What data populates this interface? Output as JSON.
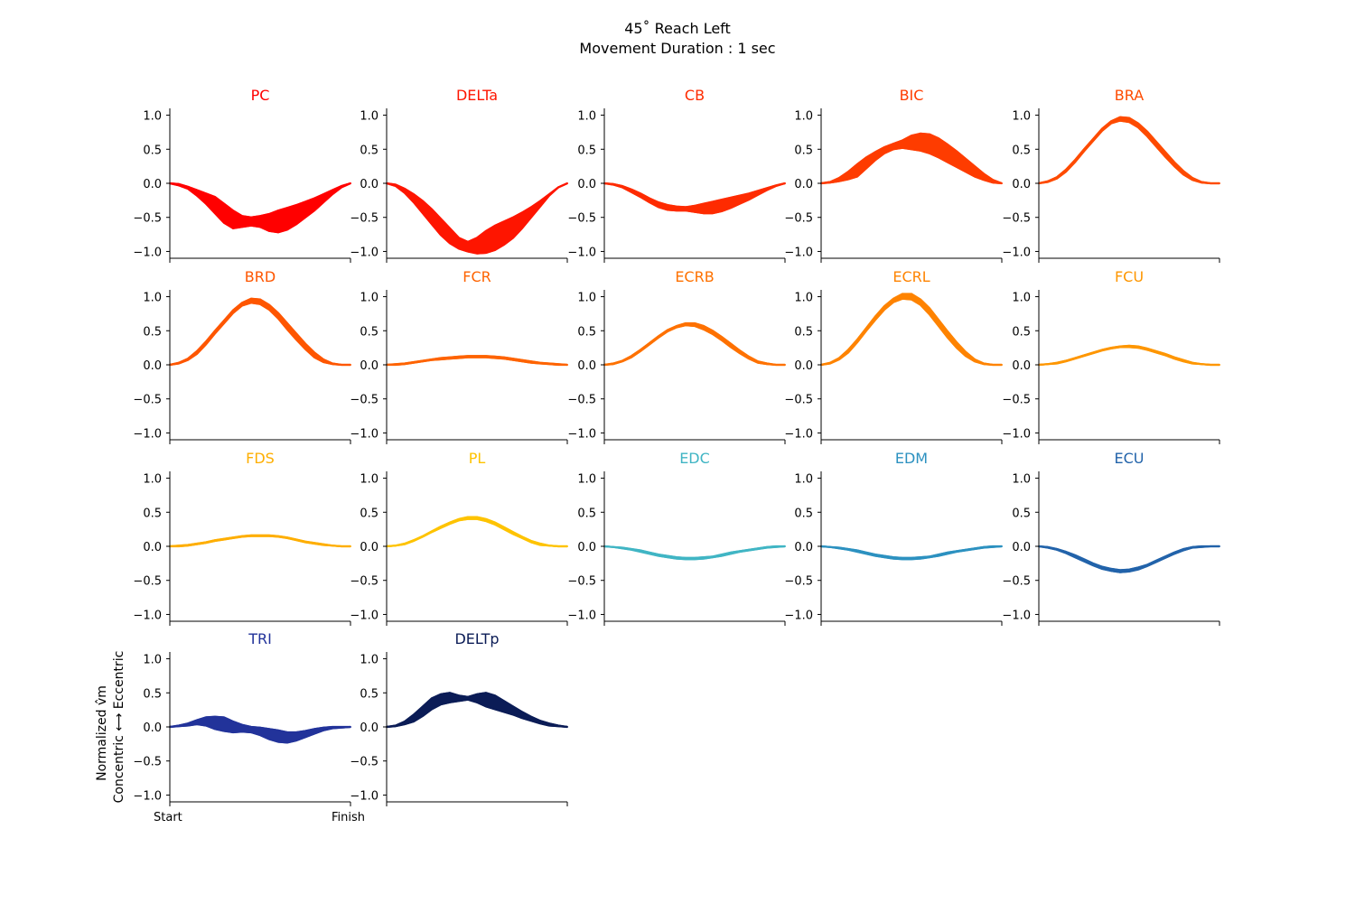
{
  "title": "45˚ Reach Left",
  "subtitle": "Movement Duration : 1 sec",
  "ylabel_line1": "Normalized v̂m",
  "ylabel_line2": "Concentric ⟷ Eccentric",
  "xtick_labels": [
    "Start",
    "Finish"
  ],
  "ytick_labels": [
    "1.0",
    "0.5",
    "0.0",
    "−0.5",
    "−1.0"
  ],
  "chart_data": {
    "type": "line",
    "layout": {
      "rows": 4,
      "cols": 5
    },
    "x": [
      0,
      0.05,
      0.1,
      0.15,
      0.2,
      0.25,
      0.3,
      0.35,
      0.4,
      0.45,
      0.5,
      0.55,
      0.6,
      0.65,
      0.7,
      0.75,
      0.8,
      0.85,
      0.9,
      0.95,
      1.0
    ],
    "xlim": [
      0,
      1
    ],
    "ylim": [
      -1.1,
      1.1
    ],
    "yticks": [
      1.0,
      0.5,
      0.0,
      -0.5,
      -1.0
    ],
    "muscles": [
      {
        "name": "PC",
        "color": "#ff0000",
        "upper": [
          0,
          -0.01,
          -0.05,
          -0.1,
          -0.15,
          -0.2,
          -0.3,
          -0.4,
          -0.48,
          -0.5,
          -0.48,
          -0.45,
          -0.4,
          -0.36,
          -0.32,
          -0.27,
          -0.22,
          -0.16,
          -0.1,
          -0.04,
          0
        ],
        "lower": [
          0,
          -0.03,
          -0.08,
          -0.18,
          -0.3,
          -0.44,
          -0.58,
          -0.66,
          -0.64,
          -0.62,
          -0.64,
          -0.7,
          -0.72,
          -0.68,
          -0.6,
          -0.5,
          -0.4,
          -0.28,
          -0.16,
          -0.06,
          0
        ]
      },
      {
        "name": "DELTa",
        "color": "#fe1500",
        "upper": [
          0,
          -0.02,
          -0.08,
          -0.16,
          -0.26,
          -0.38,
          -0.52,
          -0.66,
          -0.8,
          -0.86,
          -0.8,
          -0.7,
          -0.62,
          -0.56,
          -0.5,
          -0.43,
          -0.35,
          -0.26,
          -0.16,
          -0.06,
          0
        ],
        "lower": [
          0,
          -0.04,
          -0.14,
          -0.28,
          -0.44,
          -0.6,
          -0.76,
          -0.88,
          -0.96,
          -1.0,
          -1.03,
          -1.02,
          -0.98,
          -0.9,
          -0.8,
          -0.66,
          -0.5,
          -0.34,
          -0.18,
          -0.06,
          0
        ]
      },
      {
        "name": "CB",
        "color": "#fe2b00",
        "upper": [
          0,
          -0.01,
          -0.04,
          -0.09,
          -0.15,
          -0.22,
          -0.28,
          -0.32,
          -0.34,
          -0.35,
          -0.33,
          -0.3,
          -0.27,
          -0.24,
          -0.21,
          -0.18,
          -0.15,
          -0.11,
          -0.07,
          -0.03,
          0
        ],
        "lower": [
          0,
          -0.02,
          -0.06,
          -0.13,
          -0.2,
          -0.28,
          -0.35,
          -0.39,
          -0.4,
          -0.4,
          -0.42,
          -0.44,
          -0.44,
          -0.41,
          -0.36,
          -0.3,
          -0.24,
          -0.17,
          -0.1,
          -0.04,
          0
        ]
      },
      {
        "name": "BIC",
        "color": "#fe3c00",
        "upper": [
          0,
          0.02,
          0.08,
          0.17,
          0.28,
          0.38,
          0.46,
          0.53,
          0.58,
          0.63,
          0.7,
          0.73,
          0.72,
          0.66,
          0.57,
          0.47,
          0.36,
          0.25,
          0.14,
          0.05,
          0
        ],
        "lower": [
          0,
          0.01,
          0.03,
          0.06,
          0.1,
          0.22,
          0.34,
          0.44,
          0.5,
          0.52,
          0.5,
          0.48,
          0.44,
          0.38,
          0.31,
          0.24,
          0.17,
          0.1,
          0.05,
          0.01,
          0
        ]
      },
      {
        "name": "BRA",
        "color": "#fe4b00",
        "upper": [
          0,
          0.03,
          0.09,
          0.2,
          0.34,
          0.5,
          0.65,
          0.8,
          0.91,
          0.97,
          0.96,
          0.88,
          0.76,
          0.61,
          0.46,
          0.31,
          0.18,
          0.08,
          0.02,
          0.0,
          0
        ],
        "lower": [
          0,
          0.02,
          0.07,
          0.17,
          0.31,
          0.47,
          0.62,
          0.77,
          0.88,
          0.92,
          0.9,
          0.82,
          0.69,
          0.54,
          0.39,
          0.25,
          0.13,
          0.05,
          0.01,
          0.0,
          0
        ]
      },
      {
        "name": "BRD",
        "color": "#fe5600",
        "upper": [
          0,
          0.03,
          0.09,
          0.2,
          0.34,
          0.5,
          0.65,
          0.8,
          0.91,
          0.97,
          0.96,
          0.88,
          0.76,
          0.61,
          0.46,
          0.31,
          0.18,
          0.08,
          0.02,
          0.0,
          0
        ],
        "lower": [
          0,
          0.02,
          0.07,
          0.16,
          0.3,
          0.46,
          0.61,
          0.76,
          0.87,
          0.91,
          0.89,
          0.81,
          0.68,
          0.52,
          0.37,
          0.23,
          0.11,
          0.04,
          0.01,
          0.0,
          0
        ]
      },
      {
        "name": "FCR",
        "color": "#fe6300",
        "upper": [
          0,
          0.01,
          0.02,
          0.04,
          0.06,
          0.08,
          0.1,
          0.11,
          0.12,
          0.13,
          0.13,
          0.13,
          0.12,
          0.11,
          0.09,
          0.07,
          0.05,
          0.03,
          0.02,
          0.01,
          0
        ],
        "lower": [
          0,
          0.0,
          0.01,
          0.03,
          0.05,
          0.07,
          0.08,
          0.09,
          0.1,
          0.11,
          0.11,
          0.11,
          0.1,
          0.09,
          0.07,
          0.05,
          0.03,
          0.02,
          0.01,
          0.0,
          0
        ]
      },
      {
        "name": "ECRB",
        "color": "#fe7100",
        "upper": [
          0,
          0.02,
          0.06,
          0.13,
          0.22,
          0.32,
          0.42,
          0.51,
          0.57,
          0.61,
          0.61,
          0.57,
          0.5,
          0.41,
          0.31,
          0.21,
          0.12,
          0.05,
          0.02,
          0.0,
          0
        ],
        "lower": [
          0,
          0.01,
          0.05,
          0.11,
          0.2,
          0.3,
          0.4,
          0.49,
          0.55,
          0.58,
          0.57,
          0.52,
          0.45,
          0.36,
          0.26,
          0.17,
          0.09,
          0.03,
          0.01,
          0.0,
          0
        ]
      },
      {
        "name": "ECRL",
        "color": "#fe8300",
        "upper": [
          0,
          0.03,
          0.1,
          0.22,
          0.37,
          0.54,
          0.71,
          0.86,
          0.97,
          1.04,
          1.04,
          0.96,
          0.83,
          0.66,
          0.49,
          0.33,
          0.19,
          0.08,
          0.02,
          0.0,
          0
        ],
        "lower": [
          0,
          0.02,
          0.08,
          0.18,
          0.33,
          0.5,
          0.66,
          0.81,
          0.92,
          0.97,
          0.96,
          0.88,
          0.74,
          0.57,
          0.4,
          0.25,
          0.13,
          0.05,
          0.01,
          0.0,
          0
        ]
      },
      {
        "name": "FCU",
        "color": "#fe9600",
        "upper": [
          0,
          0.01,
          0.03,
          0.06,
          0.1,
          0.14,
          0.18,
          0.22,
          0.25,
          0.27,
          0.28,
          0.27,
          0.24,
          0.2,
          0.16,
          0.11,
          0.07,
          0.03,
          0.01,
          0.0,
          0
        ],
        "lower": [
          0,
          0.01,
          0.02,
          0.05,
          0.09,
          0.13,
          0.17,
          0.21,
          0.24,
          0.26,
          0.26,
          0.25,
          0.22,
          0.18,
          0.14,
          0.09,
          0.05,
          0.02,
          0.01,
          0.0,
          0
        ]
      },
      {
        "name": "FDS",
        "color": "#feae00",
        "upper": [
          0,
          0.01,
          0.02,
          0.04,
          0.06,
          0.09,
          0.11,
          0.13,
          0.15,
          0.16,
          0.16,
          0.16,
          0.15,
          0.13,
          0.1,
          0.07,
          0.05,
          0.03,
          0.01,
          0.0,
          0
        ],
        "lower": [
          0,
          0.0,
          0.01,
          0.03,
          0.05,
          0.08,
          0.1,
          0.12,
          0.14,
          0.15,
          0.15,
          0.15,
          0.14,
          0.12,
          0.09,
          0.06,
          0.04,
          0.02,
          0.01,
          0.0,
          0
        ]
      },
      {
        "name": "PL",
        "color": "#fec300",
        "upper": [
          0,
          0.01,
          0.04,
          0.09,
          0.15,
          0.22,
          0.29,
          0.35,
          0.4,
          0.43,
          0.43,
          0.4,
          0.35,
          0.28,
          0.21,
          0.14,
          0.08,
          0.04,
          0.01,
          0.0,
          0
        ],
        "lower": [
          0,
          0.01,
          0.03,
          0.08,
          0.14,
          0.21,
          0.27,
          0.33,
          0.38,
          0.4,
          0.4,
          0.37,
          0.32,
          0.25,
          0.18,
          0.12,
          0.06,
          0.02,
          0.01,
          0.0,
          0
        ]
      },
      {
        "name": "EDC",
        "color": "#40b5c4",
        "upper": [
          0,
          -0.01,
          -0.02,
          -0.04,
          -0.06,
          -0.09,
          -0.12,
          -0.14,
          -0.16,
          -0.17,
          -0.17,
          -0.16,
          -0.15,
          -0.12,
          -0.09,
          -0.07,
          -0.05,
          -0.03,
          -0.01,
          0.0,
          0
        ],
        "lower": [
          0,
          -0.01,
          -0.03,
          -0.05,
          -0.08,
          -0.11,
          -0.14,
          -0.16,
          -0.18,
          -0.19,
          -0.19,
          -0.18,
          -0.16,
          -0.14,
          -0.11,
          -0.08,
          -0.06,
          -0.04,
          -0.02,
          -0.01,
          0
        ]
      },
      {
        "name": "EDM",
        "color": "#2c91c0",
        "upper": [
          0,
          -0.01,
          -0.02,
          -0.04,
          -0.06,
          -0.09,
          -0.12,
          -0.14,
          -0.16,
          -0.17,
          -0.17,
          -0.16,
          -0.15,
          -0.12,
          -0.09,
          -0.07,
          -0.05,
          -0.03,
          -0.01,
          0.0,
          0
        ],
        "lower": [
          0,
          -0.01,
          -0.03,
          -0.05,
          -0.08,
          -0.11,
          -0.14,
          -0.16,
          -0.18,
          -0.19,
          -0.19,
          -0.18,
          -0.16,
          -0.14,
          -0.11,
          -0.08,
          -0.06,
          -0.04,
          -0.02,
          -0.01,
          0
        ]
      },
      {
        "name": "ECU",
        "color": "#2263aa",
        "upper": [
          0,
          -0.01,
          -0.04,
          -0.08,
          -0.13,
          -0.19,
          -0.25,
          -0.3,
          -0.33,
          -0.35,
          -0.34,
          -0.31,
          -0.27,
          -0.21,
          -0.15,
          -0.09,
          -0.04,
          -0.01,
          0.0,
          0.0,
          0
        ],
        "lower": [
          0,
          -0.02,
          -0.05,
          -0.1,
          -0.16,
          -0.22,
          -0.28,
          -0.33,
          -0.36,
          -0.38,
          -0.37,
          -0.34,
          -0.29,
          -0.23,
          -0.17,
          -0.11,
          -0.06,
          -0.02,
          -0.01,
          0.0,
          0
        ]
      },
      {
        "name": "TRI",
        "color": "#22339a",
        "upper": [
          0,
          0.02,
          0.05,
          0.1,
          0.14,
          0.15,
          0.14,
          0.08,
          0.03,
          0.0,
          -0.01,
          -0.03,
          -0.05,
          -0.08,
          -0.08,
          -0.06,
          -0.03,
          -0.01,
          0.0,
          0.0,
          0
        ],
        "lower": [
          0,
          0.01,
          0.02,
          0.04,
          0.02,
          -0.03,
          -0.06,
          -0.08,
          -0.07,
          -0.08,
          -0.12,
          -0.18,
          -0.22,
          -0.23,
          -0.2,
          -0.15,
          -0.1,
          -0.05,
          -0.02,
          -0.01,
          0
        ]
      },
      {
        "name": "DELTp",
        "color": "#0b1c56",
        "upper": [
          0,
          0.02,
          0.08,
          0.18,
          0.3,
          0.42,
          0.48,
          0.5,
          0.46,
          0.44,
          0.48,
          0.5,
          0.46,
          0.38,
          0.3,
          0.22,
          0.15,
          0.09,
          0.05,
          0.02,
          0
        ],
        "lower": [
          0,
          0.01,
          0.04,
          0.08,
          0.16,
          0.26,
          0.33,
          0.36,
          0.38,
          0.4,
          0.36,
          0.3,
          0.26,
          0.22,
          0.18,
          0.13,
          0.09,
          0.05,
          0.02,
          0.01,
          0
        ]
      }
    ]
  }
}
